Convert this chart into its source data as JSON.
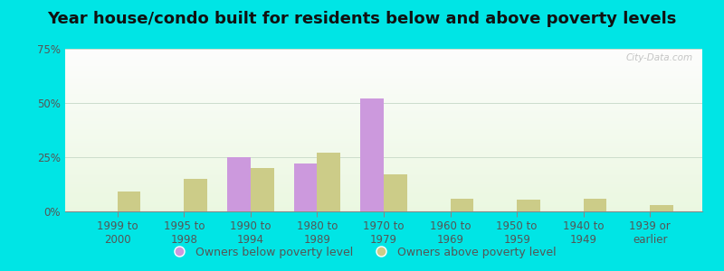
{
  "title": "Year house/condo built for residents below and above poverty levels",
  "categories": [
    "1999 to\n2000",
    "1995 to\n1998",
    "1990 to\n1994",
    "1980 to\n1989",
    "1970 to\n1979",
    "1960 to\n1969",
    "1950 to\n1959",
    "1940 to\n1949",
    "1939 or\nearlier"
  ],
  "below_poverty": [
    0,
    0,
    25,
    22,
    52,
    0,
    0,
    0,
    0
  ],
  "above_poverty": [
    9,
    15,
    20,
    27,
    17,
    6,
    5.5,
    6,
    3
  ],
  "below_color": "#cc99dd",
  "above_color": "#cccc88",
  "ylim": [
    0,
    75
  ],
  "yticks": [
    0,
    25,
    50,
    75
  ],
  "ytick_labels": [
    "0%",
    "25%",
    "50%",
    "75%"
  ],
  "outer_bg": "#00e5e5",
  "legend_below": "Owners below poverty level",
  "legend_above": "Owners above poverty level",
  "watermark": "City-Data.com",
  "bar_width": 0.35,
  "title_fontsize": 13,
  "tick_fontsize": 8.5
}
